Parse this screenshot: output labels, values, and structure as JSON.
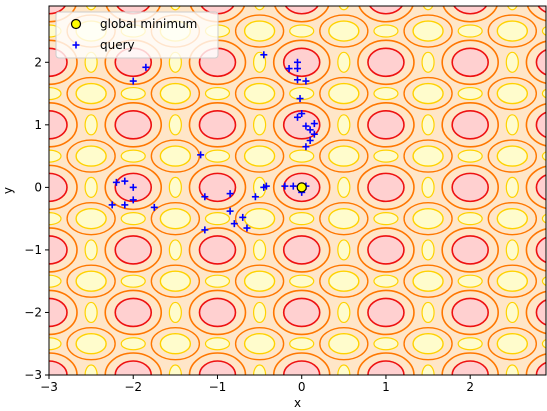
{
  "chart_data": {
    "type": "scatter",
    "xlabel": "x",
    "ylabel": "y",
    "xlim": [
      -3,
      2.9
    ],
    "ylim": [
      -3,
      2.9
    ],
    "x_ticks": [
      -3,
      -2,
      -1,
      0,
      1,
      2
    ],
    "y_ticks": [
      -3,
      -2,
      -1,
      0,
      1,
      2
    ],
    "x_tick_labels": [
      "−3",
      "−2",
      "−1",
      "0",
      "1",
      "2"
    ],
    "y_tick_labels": [
      "−3",
      "−2",
      "−1",
      "0",
      "1",
      "2"
    ],
    "background": "contour map, global minimum at (0, 0)",
    "legend_placement": "upper-left",
    "series": [
      {
        "name": "global minimum",
        "marker": "circle",
        "color": "#ffff00",
        "edgecolor": "#000000",
        "points": [
          [
            0,
            0
          ]
        ]
      },
      {
        "name": "query",
        "marker": "plus",
        "color": "#0000ff",
        "points": [
          [
            -0.45,
            2.12
          ],
          [
            -0.15,
            1.9
          ],
          [
            -0.05,
            1.9
          ],
          [
            -0.05,
            2.0
          ],
          [
            -0.05,
            1.72
          ],
          [
            0.05,
            1.7
          ],
          [
            -1.85,
            1.92
          ],
          [
            -2.0,
            1.7
          ],
          [
            -0.02,
            1.42
          ],
          [
            -0.05,
            1.12
          ],
          [
            0.0,
            1.18
          ],
          [
            0.05,
            0.98
          ],
          [
            0.15,
            1.02
          ],
          [
            0.1,
            0.92
          ],
          [
            0.15,
            0.85
          ],
          [
            0.1,
            0.75
          ],
          [
            0.05,
            0.65
          ],
          [
            -1.2,
            0.52
          ],
          [
            -2.1,
            0.1
          ],
          [
            -2.0,
            0.0
          ],
          [
            -2.2,
            0.08
          ],
          [
            -0.42,
            0.02
          ],
          [
            -0.45,
            0.0
          ],
          [
            -0.2,
            0.02
          ],
          [
            0.0,
            -0.08
          ],
          [
            0.05,
            0.02
          ],
          [
            -0.1,
            0.02
          ],
          [
            -1.15,
            -0.15
          ],
          [
            -0.85,
            -0.1
          ],
          [
            -0.55,
            -0.15
          ],
          [
            -2.0,
            -0.2
          ],
          [
            -2.1,
            -0.28
          ],
          [
            -2.25,
            -0.28
          ],
          [
            -1.75,
            -0.32
          ],
          [
            -0.85,
            -0.38
          ],
          [
            -0.7,
            -0.48
          ],
          [
            -0.8,
            -0.58
          ],
          [
            -0.65,
            -0.65
          ],
          [
            -1.15,
            -0.68
          ]
        ]
      }
    ],
    "colors": {
      "fill_low": "#ffd0d0",
      "fill_mid": "#ffe6c8",
      "fill_high": "#fffccc",
      "line_red": "#ee1111",
      "line_orange": "#ff7700",
      "line_yellow": "#ffd200"
    }
  }
}
